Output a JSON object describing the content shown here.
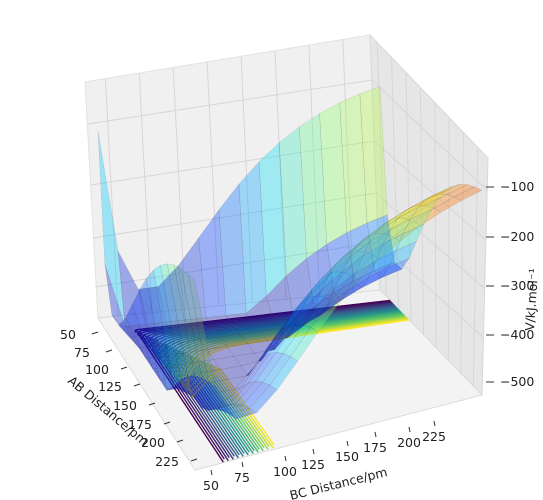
{
  "chart_data": {
    "type": "surface3d",
    "title": "",
    "xlabel": "AB Distance/pm",
    "ylabel": "BC Distance/pm",
    "zlabel": "V/kJ.mol⁻¹",
    "x_ticks": [
      "50",
      "75",
      "100",
      "125",
      "150",
      "175",
      "200",
      "225"
    ],
    "y_ticks": [
      "50",
      "75",
      "100",
      "125",
      "150",
      "175",
      "200",
      "225"
    ],
    "z_ticks": [
      "-100",
      "-200",
      "-300",
      "-400",
      "-500"
    ],
    "xlim": [
      40,
      235
    ],
    "ylim": [
      40,
      235
    ],
    "zlim": [
      -550,
      -60
    ],
    "colormap_surface": "jet",
    "colormap_contour": "viridis",
    "grid": true,
    "surface_alpha": 0.35,
    "colors": {
      "pane": "#f1f1f1",
      "grid": "#d6d6d6",
      "contour_low": "#440154",
      "contour_high": "#fde725",
      "surface_high": "#f6a85a",
      "surface_low": "#3540ff"
    }
  }
}
